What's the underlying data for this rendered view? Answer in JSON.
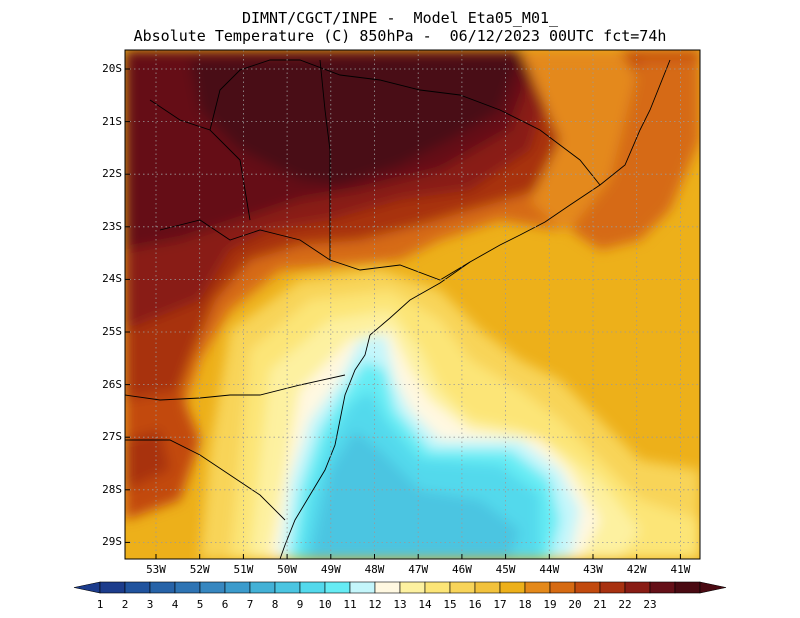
{
  "title": {
    "line1": "DIMNT/CGCT/INPE -  Model Eta05_M01_",
    "line2": "Absolute Temperature (C) 850hPa -  06/12/2023 00UTC fct=74h"
  },
  "map": {
    "lat_labels": [
      "20S",
      "21S",
      "22S",
      "23S",
      "24S",
      "25S",
      "26S",
      "27S",
      "28S",
      "29S"
    ],
    "lon_labels": [
      "53W",
      "52W",
      "51W",
      "50W",
      "49W",
      "48W",
      "47W",
      "46W",
      "45W",
      "44W",
      "43W",
      "42W",
      "41W"
    ]
  },
  "colorbar": {
    "labels": [
      "1",
      "2",
      "3",
      "4",
      "5",
      "6",
      "7",
      "8",
      "9",
      "10",
      "11",
      "12",
      "13",
      "14",
      "15",
      "16",
      "17",
      "18",
      "19",
      "20",
      "21",
      "22",
      "23"
    ],
    "colors": [
      "#1c3c8c",
      "#20539e",
      "#2763a8",
      "#2e74b4",
      "#3787c0",
      "#3b9bcc",
      "#43b1d6",
      "#4bc5e1",
      "#53d9ec",
      "#66ecf4",
      "#c4f6fb",
      "#fff8e1",
      "#fdf1a0",
      "#fce577",
      "#f8d459",
      "#f2c23c",
      "#edb01a",
      "#e4891a",
      "#d66a12",
      "#c24a0e",
      "#a83110",
      "#891c14",
      "#651018",
      "#4a0a12"
    ],
    "under_color": "#1c3c8c",
    "over_color": "#4a0a12"
  }
}
